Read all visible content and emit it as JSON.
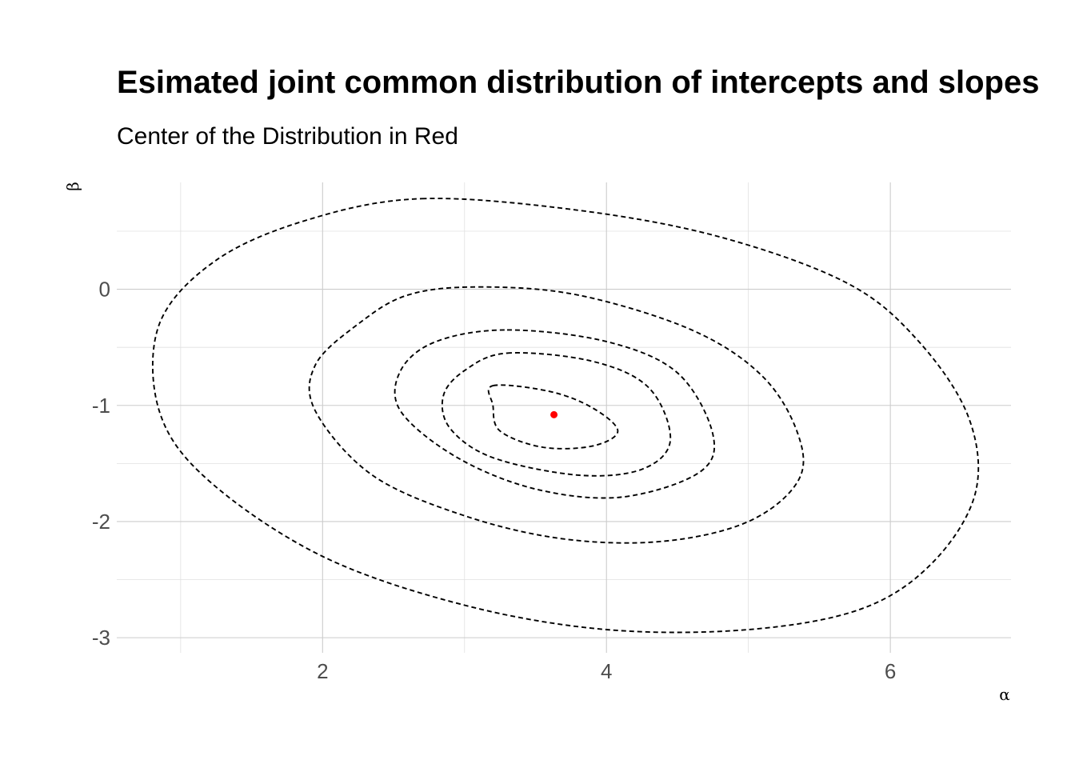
{
  "chart_data": {
    "type": "contour",
    "title": "Esimated joint common distribution of intercepts and slopes",
    "subtitle": "Center of the Distribution in Red",
    "xlabel": "α",
    "ylabel": "β",
    "xlim": [
      0.55,
      6.85
    ],
    "ylim": [
      -3.13,
      0.92
    ],
    "x_ticks": [
      2,
      4,
      6
    ],
    "x_tick_labels": [
      "2",
      "4",
      "6"
    ],
    "y_ticks": [
      0,
      -1,
      -2,
      -3
    ],
    "y_tick_labels": [
      "0",
      "-1",
      "-2",
      "-3"
    ],
    "grid": true,
    "center": {
      "alpha": 3.63,
      "beta": -1.08,
      "color": "#ff0000"
    },
    "contour_color": "#000000",
    "contours": [
      {
        "points": [
          [
            3.2,
            -0.83
          ],
          [
            3.6,
            -0.88
          ],
          [
            3.9,
            -1.02
          ],
          [
            4.08,
            -1.22
          ],
          [
            3.9,
            -1.35
          ],
          [
            3.55,
            -1.36
          ],
          [
            3.25,
            -1.22
          ],
          [
            3.2,
            -1.0
          ]
        ]
      },
      {
        "points": [
          [
            3.3,
            -0.55
          ],
          [
            3.9,
            -0.62
          ],
          [
            4.3,
            -0.85
          ],
          [
            4.45,
            -1.3
          ],
          [
            4.25,
            -1.55
          ],
          [
            3.8,
            -1.6
          ],
          [
            3.2,
            -1.45
          ],
          [
            2.9,
            -1.2
          ],
          [
            2.85,
            -0.92
          ],
          [
            3.0,
            -0.7
          ]
        ]
      },
      {
        "points": [
          [
            3.3,
            -0.35
          ],
          [
            4.0,
            -0.45
          ],
          [
            4.5,
            -0.72
          ],
          [
            4.75,
            -1.25
          ],
          [
            4.65,
            -1.58
          ],
          [
            4.1,
            -1.79
          ],
          [
            3.5,
            -1.72
          ],
          [
            2.95,
            -1.45
          ],
          [
            2.55,
            -1.05
          ],
          [
            2.55,
            -0.7
          ],
          [
            2.8,
            -0.45
          ]
        ]
      },
      {
        "points": [
          [
            3.1,
            0.02
          ],
          [
            3.8,
            -0.05
          ],
          [
            4.6,
            -0.35
          ],
          [
            5.1,
            -0.75
          ],
          [
            5.35,
            -1.25
          ],
          [
            5.35,
            -1.65
          ],
          [
            5.0,
            -2.0
          ],
          [
            4.4,
            -2.17
          ],
          [
            3.7,
            -2.15
          ],
          [
            3.0,
            -1.95
          ],
          [
            2.35,
            -1.6
          ],
          [
            1.95,
            -1.05
          ],
          [
            1.95,
            -0.65
          ],
          [
            2.25,
            -0.3
          ],
          [
            2.6,
            -0.05
          ]
        ]
      },
      {
        "points": [
          [
            2.7,
            0.78
          ],
          [
            3.8,
            0.68
          ],
          [
            4.8,
            0.45
          ],
          [
            5.7,
            0.05
          ],
          [
            6.2,
            -0.45
          ],
          [
            6.55,
            -1.1
          ],
          [
            6.6,
            -1.75
          ],
          [
            6.3,
            -2.35
          ],
          [
            5.8,
            -2.75
          ],
          [
            5.0,
            -2.93
          ],
          [
            4.0,
            -2.93
          ],
          [
            3.0,
            -2.72
          ],
          [
            2.0,
            -2.3
          ],
          [
            1.2,
            -1.65
          ],
          [
            0.85,
            -1.05
          ],
          [
            0.85,
            -0.3
          ],
          [
            1.25,
            0.25
          ],
          [
            1.9,
            0.6
          ]
        ]
      }
    ]
  }
}
